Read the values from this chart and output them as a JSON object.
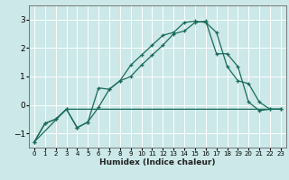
{
  "bg_color": "#cce8e8",
  "grid_color": "#ffffff",
  "line_color": "#1a6b5a",
  "xlabel": "Humidex (Indice chaleur)",
  "ylim": [
    -1.5,
    3.5
  ],
  "xlim": [
    -0.5,
    23.5
  ],
  "yticks": [
    -1,
    0,
    1,
    2,
    3
  ],
  "xticks": [
    0,
    1,
    2,
    3,
    4,
    5,
    6,
    7,
    8,
    9,
    10,
    11,
    12,
    13,
    14,
    15,
    16,
    17,
    18,
    19,
    20,
    21,
    22,
    23
  ],
  "line1_x": [
    0,
    1,
    2,
    3,
    4,
    5,
    6,
    7,
    8,
    9,
    10,
    11,
    12,
    13,
    14,
    15,
    16,
    17,
    18,
    19,
    20,
    21,
    22,
    23
  ],
  "line1_y": [
    -1.3,
    -0.65,
    -0.5,
    -0.15,
    -0.8,
    -0.6,
    0.6,
    0.55,
    0.85,
    1.4,
    1.75,
    2.1,
    2.45,
    2.55,
    2.9,
    2.95,
    2.9,
    2.55,
    1.35,
    0.85,
    0.75,
    0.1,
    -0.15,
    -0.15
  ],
  "line2_x": [
    0,
    1,
    2,
    3,
    4,
    5,
    6,
    7,
    8,
    9,
    10,
    11,
    12,
    13,
    14,
    15,
    16,
    17,
    18,
    19,
    20,
    21,
    22,
    23
  ],
  "line2_y": [
    -1.3,
    -0.65,
    -0.5,
    -0.15,
    -0.8,
    -0.6,
    -0.08,
    0.55,
    0.85,
    1.0,
    1.4,
    1.75,
    2.1,
    2.5,
    2.6,
    2.9,
    2.95,
    1.8,
    1.8,
    1.35,
    0.1,
    -0.2,
    -0.15,
    -0.15
  ],
  "line3_x": [
    0,
    3,
    9,
    23
  ],
  "line3_y": [
    -1.3,
    -0.15,
    -0.15,
    -0.15
  ]
}
